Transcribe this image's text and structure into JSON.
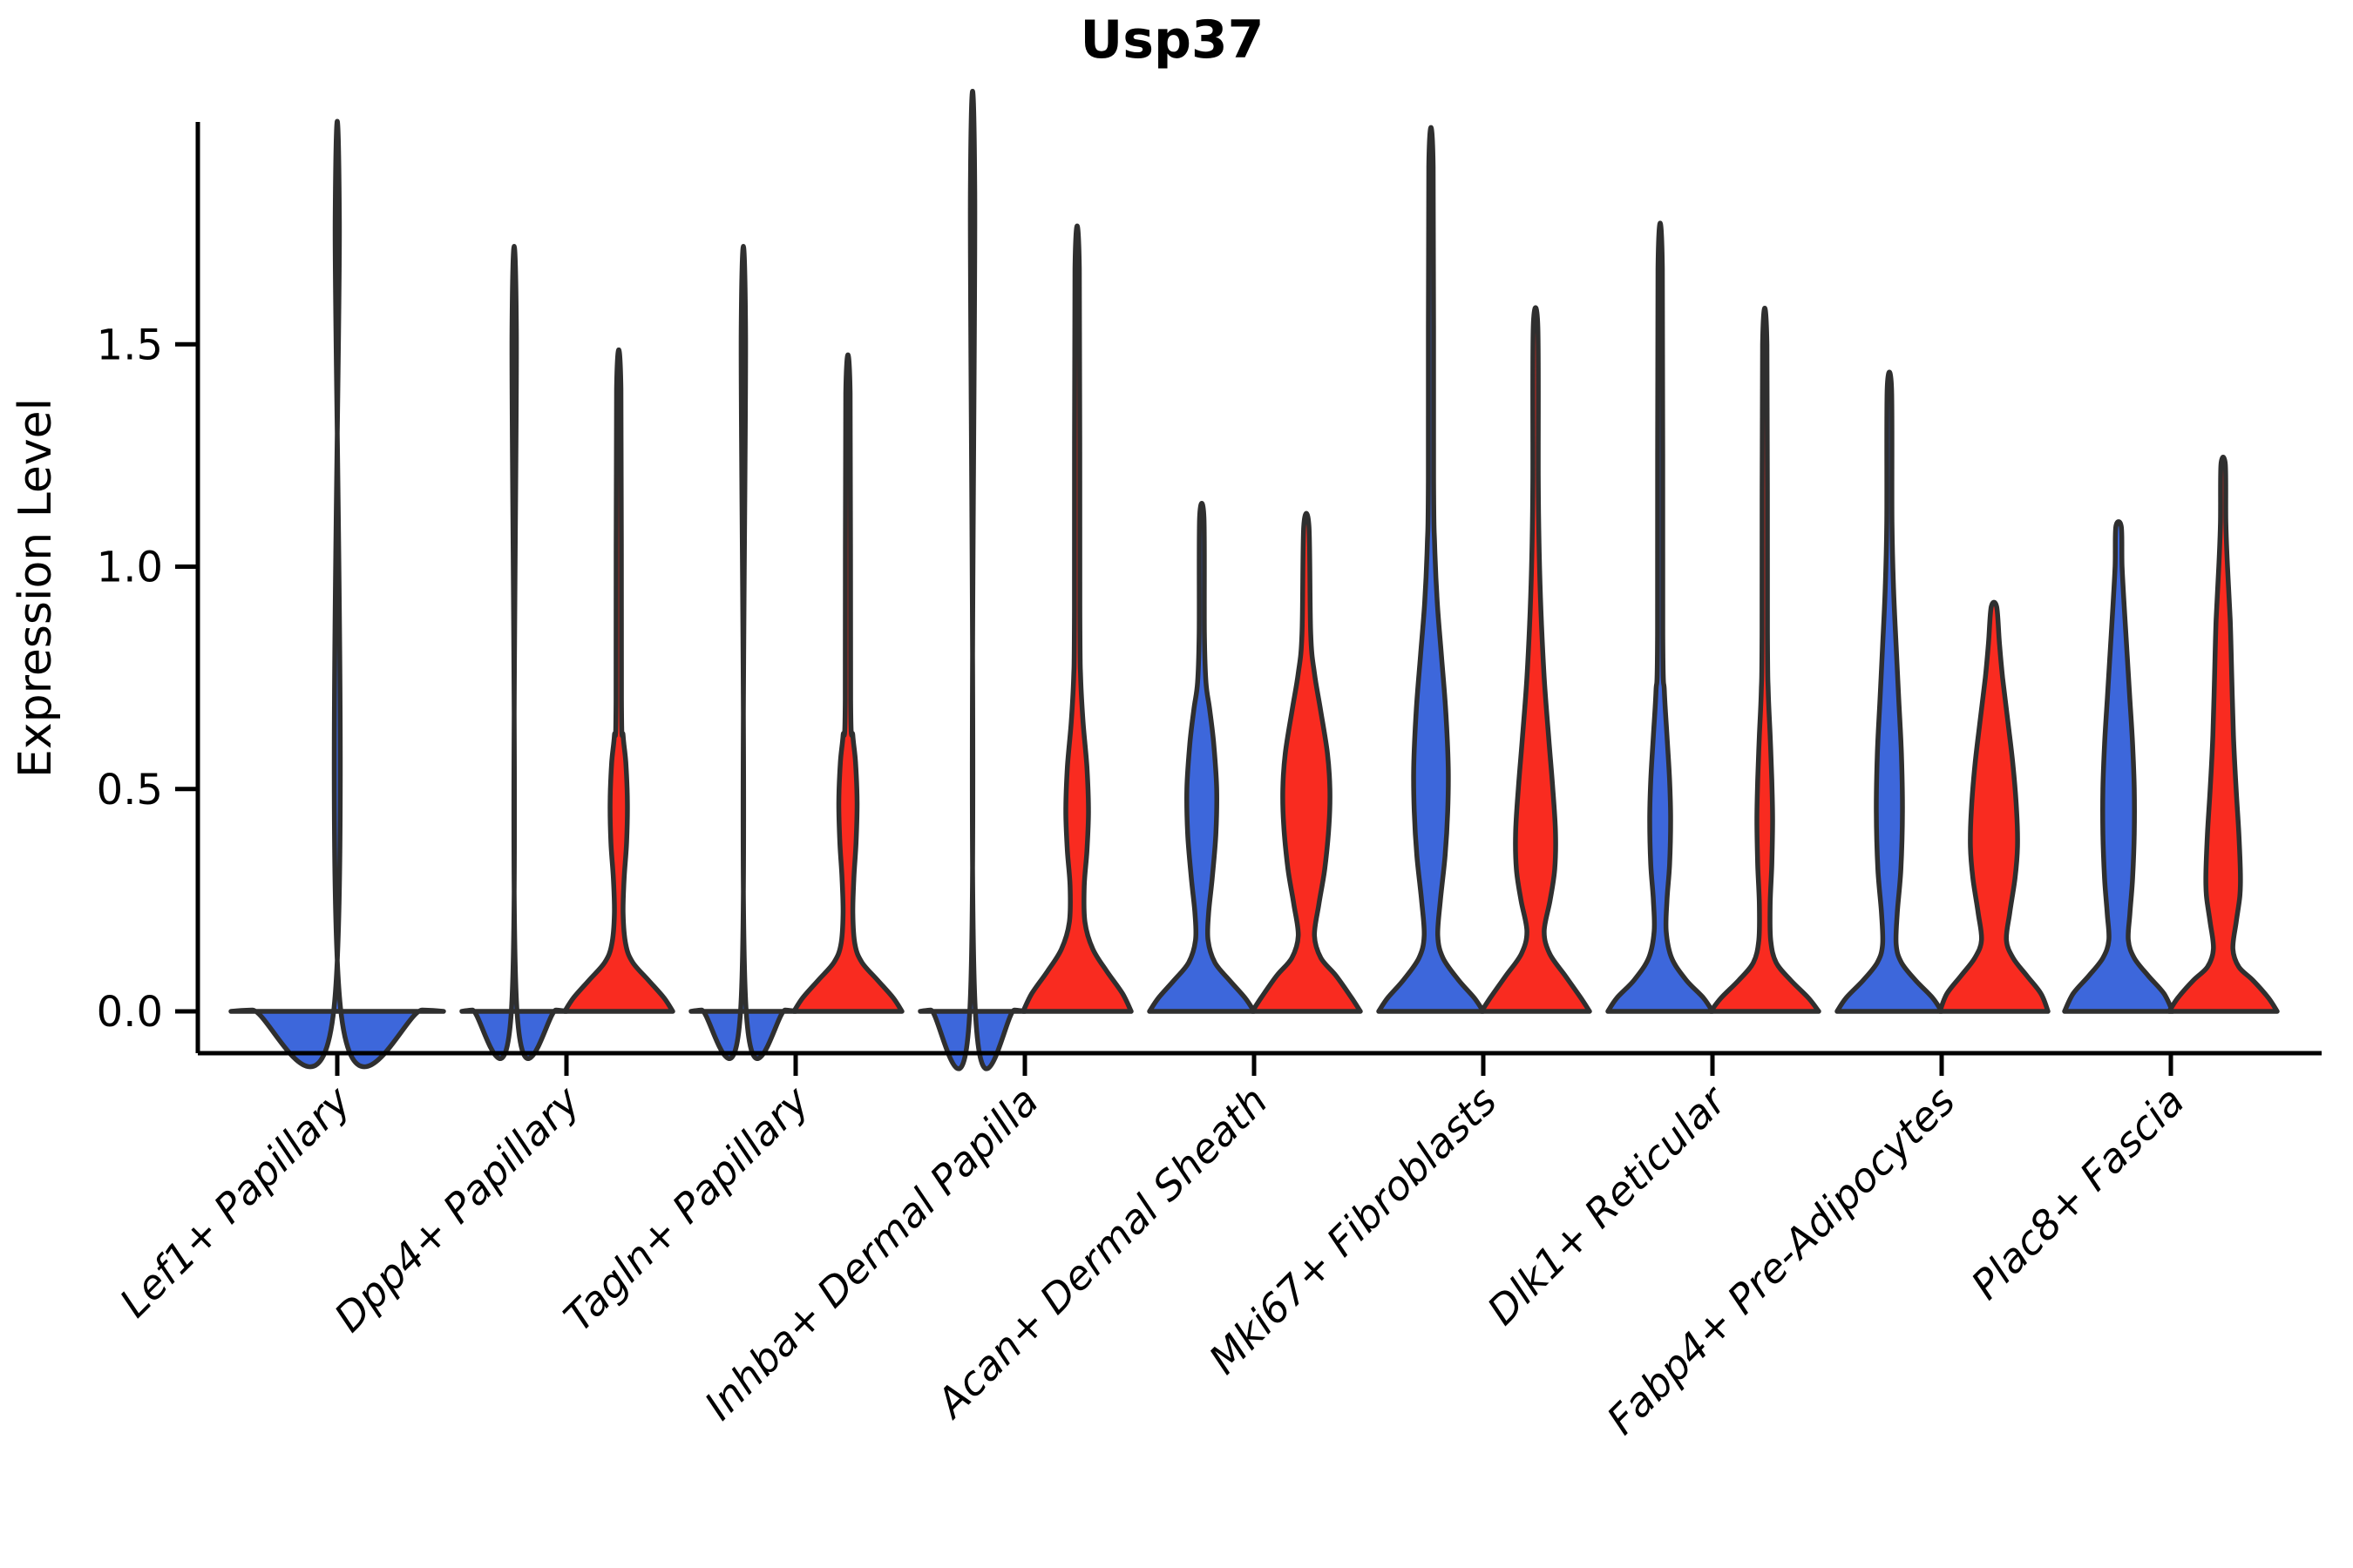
{
  "title": "Usp37",
  "axes": {
    "ylabel": "Expression Level",
    "ytick_labels": [
      "0.0",
      "0.5",
      "1.0",
      "1.5"
    ],
    "ytick_values": [
      0,
      0.5,
      1.0,
      1.5
    ],
    "ylim": [
      -0.094,
      2.0
    ],
    "x_tick_rotation_deg": 45
  },
  "chart_data": {
    "type": "violin",
    "title": "Usp37",
    "xlabel": "",
    "ylabel": "Expression Level",
    "ylim": [
      -0.094,
      2.0
    ],
    "yticks": [
      0,
      0.5,
      1.0,
      1.5
    ],
    "grid": false,
    "legend": "none",
    "categories": [
      "Lef1+ Papillary",
      "Dpp4+ Papillary",
      "Tagln+ Papillary",
      "Inhba+ Dermal Papilla",
      "Acan+ Dermal Sheath",
      "Mki67+ Fibroblasts",
      "Dlk1+ Reticular",
      "Fabp4+ Pre-Adipocytes",
      "Plac8+ Fascia"
    ],
    "group_colors": {
      "single": "#3D67DB",
      "left": "#3D67DB",
      "right": "#F92B20"
    },
    "outline_color": "#2f2f2f",
    "violins": [
      {
        "ci": 0,
        "category": "Lef1+ Papillary",
        "group": "single",
        "max": 1.78,
        "hw": 122,
        "profile": [
          [
            0,
            1
          ],
          [
            0.003,
            0.8
          ],
          [
            0.008,
            0.03
          ],
          [
            1.78,
            0.02
          ]
        ]
      },
      {
        "ci": 1,
        "category": "Dpp4+ Papillary",
        "group": "left",
        "max": 1.53,
        "hw": 60,
        "profile": [
          [
            0,
            1
          ],
          [
            0.003,
            0.8
          ],
          [
            0.008,
            0.05
          ],
          [
            1.53,
            0.042
          ]
        ]
      },
      {
        "ci": 1,
        "category": "Dpp4+ Papillary",
        "group": "right",
        "max": 1.4,
        "hw": 62,
        "profile": [
          [
            0,
            1
          ],
          [
            0.03,
            0.84
          ],
          [
            0.07,
            0.55
          ],
          [
            0.11,
            0.26
          ],
          [
            0.15,
            0.13
          ],
          [
            0.22,
            0.08
          ],
          [
            0.3,
            0.1
          ],
          [
            0.38,
            0.145
          ],
          [
            0.47,
            0.16
          ],
          [
            0.56,
            0.13
          ],
          [
            0.62,
            0.08
          ],
          [
            0.7,
            0.05
          ],
          [
            1.4,
            0.04
          ]
        ]
      },
      {
        "ci": 2,
        "category": "Tagln+ Papillary",
        "group": "left",
        "max": 1.53,
        "hw": 60,
        "profile": [
          [
            0,
            1
          ],
          [
            0.003,
            0.8
          ],
          [
            0.008,
            0.05
          ],
          [
            1.53,
            0.042
          ]
        ]
      },
      {
        "ci": 2,
        "category": "Tagln+ Papillary",
        "group": "right",
        "max": 1.39,
        "hw": 62,
        "profile": [
          [
            0,
            1
          ],
          [
            0.03,
            0.84
          ],
          [
            0.07,
            0.55
          ],
          [
            0.11,
            0.26
          ],
          [
            0.15,
            0.13
          ],
          [
            0.22,
            0.09
          ],
          [
            0.3,
            0.11
          ],
          [
            0.38,
            0.15
          ],
          [
            0.47,
            0.17
          ],
          [
            0.56,
            0.14
          ],
          [
            0.62,
            0.09
          ],
          [
            0.7,
            0.05
          ],
          [
            1.39,
            0.04
          ]
        ]
      },
      {
        "ci": 3,
        "category": "Inhba+ Dermal Papilla",
        "group": "left",
        "max": 1.84,
        "hw": 60,
        "profile": [
          [
            0,
            1
          ],
          [
            0.003,
            0.8
          ],
          [
            0.008,
            0.05
          ],
          [
            1.84,
            0.042
          ]
        ]
      },
      {
        "ci": 3,
        "category": "Inhba+ Dermal Papilla",
        "group": "right",
        "max": 1.67,
        "hw": 62,
        "profile": [
          [
            0,
            1
          ],
          [
            0.04,
            0.84
          ],
          [
            0.09,
            0.55
          ],
          [
            0.14,
            0.29
          ],
          [
            0.2,
            0.145
          ],
          [
            0.28,
            0.13
          ],
          [
            0.36,
            0.18
          ],
          [
            0.45,
            0.21
          ],
          [
            0.55,
            0.18
          ],
          [
            0.65,
            0.11
          ],
          [
            0.75,
            0.065
          ],
          [
            0.9,
            0.05
          ],
          [
            1.67,
            0.04
          ]
        ]
      },
      {
        "ci": 4,
        "category": "Acan+ Dermal Sheath",
        "group": "left",
        "max": 1.11,
        "hw": 60,
        "profile": [
          [
            0,
            1
          ],
          [
            0.03,
            0.83
          ],
          [
            0.07,
            0.53
          ],
          [
            0.11,
            0.25
          ],
          [
            0.16,
            0.12
          ],
          [
            0.22,
            0.13
          ],
          [
            0.3,
            0.2
          ],
          [
            0.4,
            0.27
          ],
          [
            0.5,
            0.285
          ],
          [
            0.6,
            0.23
          ],
          [
            0.68,
            0.15
          ],
          [
            0.74,
            0.08
          ],
          [
            0.85,
            0.05
          ],
          [
            1.11,
            0.042
          ]
        ]
      },
      {
        "ci": 4,
        "category": "Acan+ Dermal Sheath",
        "group": "right",
        "max": 1.09,
        "hw": 62,
        "profile": [
          [
            0,
            1
          ],
          [
            0.03,
            0.84
          ],
          [
            0.08,
            0.55
          ],
          [
            0.12,
            0.27
          ],
          [
            0.17,
            0.15
          ],
          [
            0.24,
            0.23
          ],
          [
            0.32,
            0.34
          ],
          [
            0.42,
            0.42
          ],
          [
            0.5,
            0.435
          ],
          [
            0.58,
            0.39
          ],
          [
            0.68,
            0.26
          ],
          [
            0.76,
            0.15
          ],
          [
            0.85,
            0.08
          ],
          [
            1.09,
            0.048
          ]
        ]
      },
      {
        "ci": 5,
        "category": "Mki67+ Fibroblasts",
        "group": "left",
        "max": 1.9,
        "hw": 60,
        "profile": [
          [
            0,
            1
          ],
          [
            0.03,
            0.83
          ],
          [
            0.07,
            0.53
          ],
          [
            0.12,
            0.23
          ],
          [
            0.17,
            0.13
          ],
          [
            0.25,
            0.18
          ],
          [
            0.35,
            0.27
          ],
          [
            0.45,
            0.32
          ],
          [
            0.55,
            0.33
          ],
          [
            0.68,
            0.28
          ],
          [
            0.8,
            0.2
          ],
          [
            0.92,
            0.12
          ],
          [
            1.05,
            0.07
          ],
          [
            1.2,
            0.05
          ],
          [
            1.9,
            0.042
          ]
        ]
      },
      {
        "ci": 5,
        "category": "Mki67+ Fibroblasts",
        "group": "right",
        "max": 1.54,
        "hw": 62,
        "profile": [
          [
            0,
            1
          ],
          [
            0.03,
            0.84
          ],
          [
            0.08,
            0.55
          ],
          [
            0.13,
            0.26
          ],
          [
            0.18,
            0.16
          ],
          [
            0.25,
            0.27
          ],
          [
            0.32,
            0.355
          ],
          [
            0.4,
            0.37
          ],
          [
            0.5,
            0.32
          ],
          [
            0.62,
            0.24
          ],
          [
            0.75,
            0.16
          ],
          [
            0.9,
            0.1
          ],
          [
            1.05,
            0.065
          ],
          [
            1.2,
            0.05
          ],
          [
            1.54,
            0.042
          ]
        ]
      },
      {
        "ci": 6,
        "category": "Dlk1+ Reticular",
        "group": "left",
        "max": 1.67,
        "hw": 60,
        "profile": [
          [
            0,
            1
          ],
          [
            0.03,
            0.83
          ],
          [
            0.07,
            0.5
          ],
          [
            0.12,
            0.22
          ],
          [
            0.18,
            0.115
          ],
          [
            0.25,
            0.13
          ],
          [
            0.33,
            0.18
          ],
          [
            0.43,
            0.2
          ],
          [
            0.52,
            0.18
          ],
          [
            0.62,
            0.13
          ],
          [
            0.72,
            0.08
          ],
          [
            0.85,
            0.05
          ],
          [
            1.67,
            0.042
          ]
        ]
      },
      {
        "ci": 6,
        "category": "Dlk1+ Reticular",
        "group": "right",
        "max": 1.5,
        "hw": 62,
        "profile": [
          [
            0,
            1
          ],
          [
            0.03,
            0.81
          ],
          [
            0.07,
            0.48
          ],
          [
            0.11,
            0.21
          ],
          [
            0.16,
            0.11
          ],
          [
            0.24,
            0.1
          ],
          [
            0.33,
            0.13
          ],
          [
            0.43,
            0.145
          ],
          [
            0.52,
            0.13
          ],
          [
            0.62,
            0.1
          ],
          [
            0.72,
            0.065
          ],
          [
            0.85,
            0.05
          ],
          [
            1.5,
            0.04
          ]
        ]
      },
      {
        "ci": 7,
        "category": "Fabp4+ Pre-Adipocytes",
        "group": "left",
        "max": 1.4,
        "hw": 60,
        "profile": [
          [
            0,
            1
          ],
          [
            0.03,
            0.83
          ],
          [
            0.07,
            0.5
          ],
          [
            0.11,
            0.23
          ],
          [
            0.15,
            0.13
          ],
          [
            0.22,
            0.15
          ],
          [
            0.32,
            0.22
          ],
          [
            0.45,
            0.25
          ],
          [
            0.58,
            0.23
          ],
          [
            0.7,
            0.18
          ],
          [
            0.82,
            0.13
          ],
          [
            0.95,
            0.08
          ],
          [
            1.1,
            0.05
          ],
          [
            1.4,
            0.042
          ]
        ]
      },
      {
        "ci": 7,
        "category": "Fabp4+ Pre-Adipocytes",
        "group": "right",
        "max": 0.91,
        "hw": 62,
        "profile": [
          [
            0,
            1
          ],
          [
            0.04,
            0.87
          ],
          [
            0.08,
            0.61
          ],
          [
            0.12,
            0.355
          ],
          [
            0.16,
            0.23
          ],
          [
            0.22,
            0.29
          ],
          [
            0.3,
            0.39
          ],
          [
            0.37,
            0.435
          ],
          [
            0.45,
            0.42
          ],
          [
            0.55,
            0.355
          ],
          [
            0.65,
            0.26
          ],
          [
            0.75,
            0.16
          ],
          [
            0.83,
            0.1
          ],
          [
            0.91,
            0.05
          ]
        ]
      },
      {
        "ci": 8,
        "category": "Plac8+ Fascia",
        "group": "left",
        "max": 1.09,
        "hw": 62,
        "profile": [
          [
            0,
            1
          ],
          [
            0.04,
            0.84
          ],
          [
            0.08,
            0.55
          ],
          [
            0.12,
            0.29
          ],
          [
            0.16,
            0.18
          ],
          [
            0.22,
            0.21
          ],
          [
            0.3,
            0.26
          ],
          [
            0.4,
            0.29
          ],
          [
            0.5,
            0.29
          ],
          [
            0.6,
            0.26
          ],
          [
            0.7,
            0.21
          ],
          [
            0.8,
            0.16
          ],
          [
            0.9,
            0.11
          ],
          [
            1.0,
            0.065
          ],
          [
            1.09,
            0.05
          ]
        ]
      },
      {
        "ci": 8,
        "category": "Plac8+ Fascia",
        "group": "right",
        "max": 1.23,
        "hw": 62,
        "profile": [
          [
            0,
            1
          ],
          [
            0.03,
            0.84
          ],
          [
            0.07,
            0.55
          ],
          [
            0.1,
            0.29
          ],
          [
            0.14,
            0.18
          ],
          [
            0.2,
            0.24
          ],
          [
            0.26,
            0.31
          ],
          [
            0.31,
            0.32
          ],
          [
            0.4,
            0.29
          ],
          [
            0.5,
            0.24
          ],
          [
            0.62,
            0.19
          ],
          [
            0.75,
            0.16
          ],
          [
            0.88,
            0.13
          ],
          [
            1.0,
            0.08
          ],
          [
            1.1,
            0.05
          ],
          [
            1.23,
            0.04
          ]
        ]
      }
    ]
  }
}
